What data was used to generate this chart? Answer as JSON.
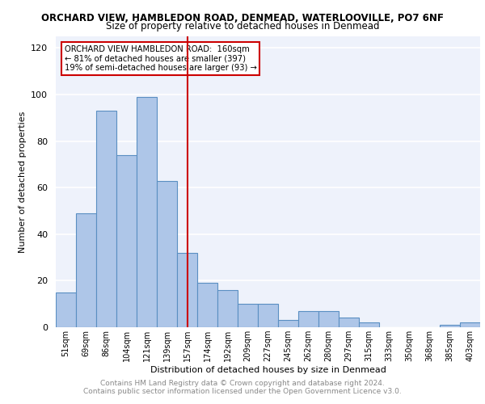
{
  "title1": "ORCHARD VIEW, HAMBLEDON ROAD, DENMEAD, WATERLOOVILLE, PO7 6NF",
  "title2": "Size of property relative to detached houses in Denmead",
  "xlabel": "Distribution of detached houses by size in Denmead",
  "ylabel": "Number of detached properties",
  "categories": [
    "51sqm",
    "69sqm",
    "86sqm",
    "104sqm",
    "121sqm",
    "139sqm",
    "157sqm",
    "174sqm",
    "192sqm",
    "209sqm",
    "227sqm",
    "245sqm",
    "262sqm",
    "280sqm",
    "297sqm",
    "315sqm",
    "333sqm",
    "350sqm",
    "368sqm",
    "385sqm",
    "403sqm"
  ],
  "values": [
    15,
    49,
    93,
    74,
    99,
    63,
    32,
    19,
    16,
    10,
    10,
    3,
    7,
    7,
    4,
    2,
    0,
    0,
    0,
    1,
    2
  ],
  "bar_color": "#aec6e8",
  "bar_edge_color": "#5a8fc2",
  "vline_x_index": 6,
  "vline_color": "#cc0000",
  "annotation_lines": [
    "ORCHARD VIEW HAMBLEDON ROAD:  160sqm",
    "← 81% of detached houses are smaller (397)",
    "19% of semi-detached houses are larger (93) →"
  ],
  "annotation_box_color": "#cc0000",
  "ylim": [
    0,
    125
  ],
  "yticks": [
    0,
    20,
    40,
    60,
    80,
    100,
    120
  ],
  "footer1": "Contains HM Land Registry data © Crown copyright and database right 2024.",
  "footer2": "Contains public sector information licensed under the Open Government Licence v3.0.",
  "bg_color": "#eef2fb",
  "grid_color": "#ffffff"
}
